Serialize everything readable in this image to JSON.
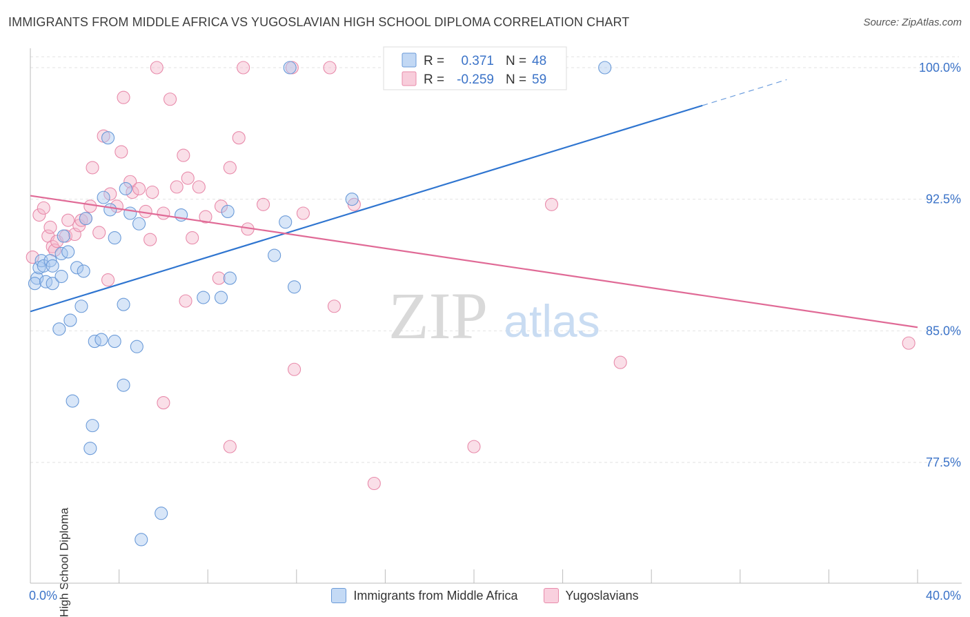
{
  "title": "IMMIGRANTS FROM MIDDLE AFRICA VS YUGOSLAVIAN HIGH SCHOOL DIPLOMA CORRELATION CHART",
  "source": "Source: ZipAtlas.com",
  "watermark": {
    "zip": "ZIP",
    "atlas": "atlas"
  },
  "colors": {
    "blue_fill": "#a8c8f0",
    "blue_stroke": "#6a9ad8",
    "blue_line": "#2f75d0",
    "pink_fill": "#f5b8cc",
    "pink_stroke": "#e88aaa",
    "pink_line": "#e06a96",
    "axis_text": "#3b73c8",
    "grid": "#e2e2e2"
  },
  "legend": {
    "rows": [
      {
        "r_label": "R =",
        "r_value": "0.371",
        "n_label": "N =",
        "n_value": "48"
      },
      {
        "r_label": "R =",
        "r_value": "-0.259",
        "n_label": "N =",
        "n_value": "59"
      }
    ]
  },
  "chart_data": {
    "type": "scatter",
    "title": "IMMIGRANTS FROM MIDDLE AFRICA VS YUGOSLAVIAN HIGH SCHOOL DIPLOMA CORRELATION CHART",
    "xlabel": "",
    "ylabel": "High School Diploma",
    "xlim": [
      0,
      40
    ],
    "ylim": [
      72,
      100.5
    ],
    "x_tick_labels": [
      "0.0%",
      "40.0%"
    ],
    "y_ticks": [
      77.5,
      85.0,
      92.5,
      100.0
    ],
    "y_tick_labels": [
      "77.5%",
      "85.0%",
      "92.5%",
      "100.0%"
    ],
    "grid": true,
    "legend_position": "top-center",
    "series": [
      {
        "name": "Immigrants from Middle Africa",
        "color": "#a8c8f0",
        "points": [
          [
            0.3,
            88.0
          ],
          [
            0.4,
            88.6
          ],
          [
            0.5,
            89.0
          ],
          [
            0.6,
            88.7
          ],
          [
            0.2,
            87.7
          ],
          [
            0.9,
            89.0
          ],
          [
            0.7,
            87.8
          ],
          [
            1.0,
            88.7
          ],
          [
            1.0,
            87.7
          ],
          [
            1.4,
            88.1
          ],
          [
            1.5,
            90.4
          ],
          [
            1.4,
            89.4
          ],
          [
            1.7,
            89.5
          ],
          [
            2.1,
            88.6
          ],
          [
            2.4,
            88.4
          ],
          [
            1.3,
            85.1
          ],
          [
            1.8,
            85.6
          ],
          [
            2.3,
            86.4
          ],
          [
            2.9,
            84.4
          ],
          [
            3.2,
            84.5
          ],
          [
            3.8,
            84.4
          ],
          [
            3.3,
            92.6
          ],
          [
            3.5,
            96.0
          ],
          [
            3.6,
            91.9
          ],
          [
            3.8,
            90.3
          ],
          [
            4.2,
            86.5
          ],
          [
            4.3,
            93.1
          ],
          [
            4.5,
            91.7
          ],
          [
            4.9,
            91.1
          ],
          [
            4.8,
            84.1
          ],
          [
            4.2,
            81.9
          ],
          [
            1.9,
            81.0
          ],
          [
            2.8,
            79.6
          ],
          [
            2.7,
            78.3
          ],
          [
            5.9,
            74.6
          ],
          [
            5.0,
            73.1
          ],
          [
            6.8,
            91.6
          ],
          [
            7.8,
            86.9
          ],
          [
            8.6,
            86.9
          ],
          [
            8.9,
            91.8
          ],
          [
            9.0,
            88.0
          ],
          [
            11.0,
            89.3
          ],
          [
            11.5,
            91.2
          ],
          [
            11.9,
            87.5
          ],
          [
            11.7,
            100.0
          ],
          [
            14.5,
            92.5
          ],
          [
            25.9,
            100.0
          ],
          [
            2.5,
            91.4
          ]
        ]
      },
      {
        "name": "Yugoslavians",
        "color": "#f5b8cc",
        "points": [
          [
            0.1,
            89.2
          ],
          [
            0.4,
            91.6
          ],
          [
            0.6,
            92.0
          ],
          [
            0.8,
            90.4
          ],
          [
            0.9,
            90.9
          ],
          [
            1.0,
            89.8
          ],
          [
            1.1,
            89.6
          ],
          [
            1.2,
            90.1
          ],
          [
            1.6,
            90.4
          ],
          [
            1.7,
            91.3
          ],
          [
            2.0,
            90.5
          ],
          [
            2.2,
            91.0
          ],
          [
            2.3,
            91.3
          ],
          [
            2.5,
            91.4
          ],
          [
            2.7,
            92.1
          ],
          [
            2.8,
            94.3
          ],
          [
            3.1,
            90.6
          ],
          [
            3.3,
            96.1
          ],
          [
            3.5,
            87.9
          ],
          [
            3.6,
            92.8
          ],
          [
            3.9,
            92.1
          ],
          [
            4.1,
            95.2
          ],
          [
            4.2,
            98.3
          ],
          [
            4.5,
            93.5
          ],
          [
            4.6,
            92.9
          ],
          [
            4.9,
            93.1
          ],
          [
            5.2,
            91.8
          ],
          [
            5.4,
            90.2
          ],
          [
            5.5,
            92.9
          ],
          [
            5.7,
            100.0
          ],
          [
            6.0,
            91.7
          ],
          [
            6.3,
            98.2
          ],
          [
            6.6,
            93.2
          ],
          [
            6.9,
            95.0
          ],
          [
            7.0,
            86.7
          ],
          [
            7.1,
            93.7
          ],
          [
            7.3,
            90.3
          ],
          [
            7.6,
            93.2
          ],
          [
            7.9,
            91.5
          ],
          [
            8.6,
            92.1
          ],
          [
            8.5,
            88.0
          ],
          [
            9.0,
            94.3
          ],
          [
            9.4,
            96.0
          ],
          [
            9.6,
            100.0
          ],
          [
            9.8,
            90.8
          ],
          [
            10.5,
            92.2
          ],
          [
            11.8,
            100.0
          ],
          [
            11.9,
            82.8
          ],
          [
            12.3,
            91.7
          ],
          [
            13.5,
            100.0
          ],
          [
            13.7,
            86.4
          ],
          [
            14.6,
            92.2
          ],
          [
            15.5,
            76.3
          ],
          [
            20.0,
            78.4
          ],
          [
            23.5,
            92.2
          ],
          [
            26.6,
            83.2
          ],
          [
            39.6,
            84.3
          ],
          [
            9.0,
            78.4
          ],
          [
            6.0,
            80.9
          ]
        ]
      }
    ],
    "trendlines": [
      {
        "series": "Immigrants from Middle Africa",
        "x": [
          0,
          40
        ],
        "y": [
          86.1,
          101.6
        ],
        "solid_until_x": 30.3
      },
      {
        "series": "Yugoslavians",
        "x": [
          0,
          40
        ],
        "y": [
          92.7,
          85.2
        ]
      }
    ]
  }
}
